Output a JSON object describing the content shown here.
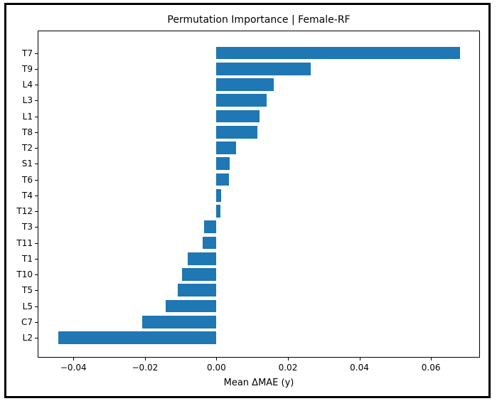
{
  "figure": {
    "title": "Permutation Importance | Female-RF",
    "xlabel": "Mean ΔMAE (y)"
  },
  "chart_data": {
    "type": "bar",
    "orientation": "horizontal",
    "title": "Permutation Importance | Female-RF",
    "xlabel": "Mean ΔMAE (y)",
    "ylabel": "",
    "categories": [
      "T7",
      "T9",
      "L4",
      "L3",
      "L1",
      "T8",
      "T2",
      "S1",
      "T6",
      "T4",
      "T12",
      "T3",
      "T11",
      "T1",
      "T10",
      "T5",
      "L5",
      "C7",
      "L2"
    ],
    "values": [
      0.0682,
      0.0264,
      0.016,
      0.014,
      0.012,
      0.0114,
      0.0055,
      0.0037,
      0.0035,
      0.0014,
      0.0012,
      -0.0034,
      -0.0038,
      -0.0081,
      -0.0097,
      -0.0109,
      -0.0142,
      -0.0207,
      -0.0442
    ],
    "xlim": [
      -0.0499,
      0.0737
    ],
    "xticks": [
      -0.04,
      -0.02,
      0.0,
      0.02,
      0.04,
      0.06
    ],
    "xtick_labels": [
      "−0.04",
      "−0.02",
      "0.00",
      "0.02",
      "0.04",
      "0.06"
    ],
    "bar_color": "#1f77b4",
    "grid": false,
    "legend": null
  }
}
